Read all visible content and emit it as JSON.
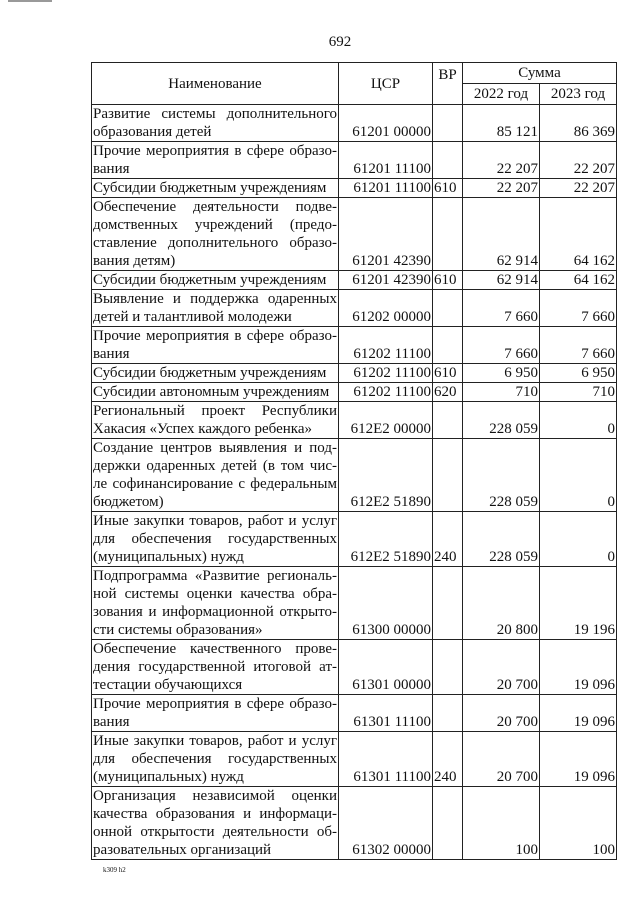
{
  "page_number": "692",
  "footer": "k309 h2",
  "header": {
    "name": "Наименование",
    "csr": "ЦСР",
    "vr": "ВР",
    "sum": "Сумма",
    "y1": "2022 год",
    "y2": "2023 год"
  },
  "rows": [
    {
      "lines": [
        "Развитие системы дополнительного",
        "образования детей"
      ],
      "csr": "61201 00000",
      "vr": "",
      "y1": "85 121",
      "y2": "86 369"
    },
    {
      "lines": [
        "Прочие мероприятия в сфере образо-",
        "вания"
      ],
      "csr": "61201 11100",
      "vr": "",
      "y1": "22 207",
      "y2": "22 207"
    },
    {
      "lines": [
        "Субсидии бюджетным учреждениям"
      ],
      "csr": "61201 11100",
      "vr": "610",
      "y1": "22 207",
      "y2": "22 207"
    },
    {
      "lines": [
        "Обеспечение деятельности подве-",
        "домственных учреждений (предо-",
        "ставление дополнительного образо-",
        "вания детям)"
      ],
      "csr": "61201 42390",
      "vr": "",
      "y1": "62 914",
      "y2": "64 162"
    },
    {
      "lines": [
        "Субсидии бюджетным учреждениям"
      ],
      "csr": "61201 42390",
      "vr": "610",
      "y1": "62 914",
      "y2": "64 162"
    },
    {
      "lines": [
        "Выявление и поддержка одаренных",
        "детей и талантливой молодежи"
      ],
      "csr": "61202 00000",
      "vr": "",
      "y1": "7 660",
      "y2": "7 660"
    },
    {
      "lines": [
        "Прочие мероприятия в сфере образо-",
        "вания"
      ],
      "csr": "61202 11100",
      "vr": "",
      "y1": "7 660",
      "y2": "7 660"
    },
    {
      "lines": [
        "Субсидии бюджетным учреждениям"
      ],
      "csr": "61202 11100",
      "vr": "610",
      "y1": "6 950",
      "y2": "6 950"
    },
    {
      "lines": [
        "Субсидии автономным учреждениям"
      ],
      "csr": "61202 11100",
      "vr": "620",
      "y1": "710",
      "y2": "710"
    },
    {
      "lines": [
        "Региональный проект Республики",
        "Хакасия «Успех каждого ребенка»"
      ],
      "csr": "612E2 00000",
      "vr": "",
      "y1": "228 059",
      "y2": "0"
    },
    {
      "lines": [
        "Создание центров выявления и под-",
        "держки одаренных детей (в том чис-",
        "ле софинансирование с федеральным",
        "бюджетом)"
      ],
      "csr": "612E2 51890",
      "vr": "",
      "y1": "228 059",
      "y2": "0"
    },
    {
      "lines": [
        "Иные закупки товаров, работ и услуг",
        "для обеспечения государственных",
        "(муниципальных) нужд"
      ],
      "csr": "612E2 51890",
      "vr": "240",
      "y1": "228 059",
      "y2": "0"
    },
    {
      "lines": [
        "Подпрограмма «Развитие региональ-",
        "ной системы оценки качества обра-",
        "зования и информационной открыто-",
        "сти системы образования»"
      ],
      "csr": "61300 00000",
      "vr": "",
      "y1": "20 800",
      "y2": "19 196"
    },
    {
      "lines": [
        "Обеспечение качественного прове-",
        "дения государственной итоговой ат-",
        "тестации обучающихся"
      ],
      "csr": "61301 00000",
      "vr": "",
      "y1": "20 700",
      "y2": "19 096"
    },
    {
      "lines": [
        "Прочие мероприятия в сфере образо-",
        "вания"
      ],
      "csr": "61301 11100",
      "vr": "",
      "y1": "20 700",
      "y2": "19 096"
    },
    {
      "lines": [
        "Иные закупки товаров, работ и услуг",
        "для обеспечения государственных",
        "(муниципальных) нужд"
      ],
      "csr": "61301 11100",
      "vr": "240",
      "y1": "20 700",
      "y2": "19 096"
    },
    {
      "lines": [
        "Организация независимой оценки",
        "качества образования и информаци-",
        "онной открытости деятельности об-",
        "разовательных организаций"
      ],
      "csr": "61302 00000",
      "vr": "",
      "y1": "100",
      "y2": "100"
    }
  ]
}
